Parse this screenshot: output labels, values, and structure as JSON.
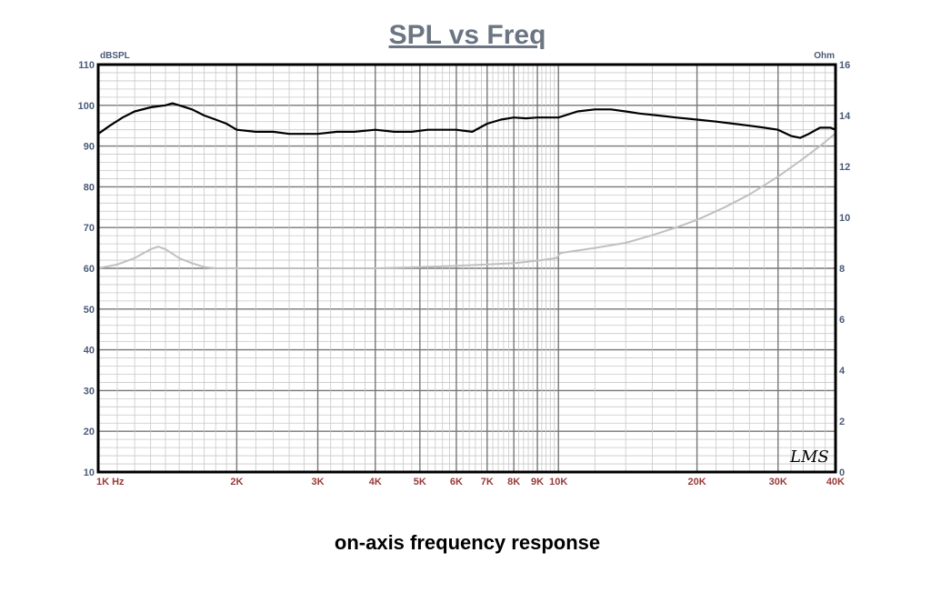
{
  "chart_data": {
    "type": "line",
    "title": "SPL vs Freq",
    "caption": "on-axis frequency response",
    "signature": "LMS",
    "x_scale": "log",
    "xlim": [
      1000,
      40000
    ],
    "x_ticks": [
      {
        "value": 1000,
        "label": "1K  Hz"
      },
      {
        "value": 2000,
        "label": "2K"
      },
      {
        "value": 3000,
        "label": "3K"
      },
      {
        "value": 4000,
        "label": "4K"
      },
      {
        "value": 5000,
        "label": "5K"
      },
      {
        "value": 6000,
        "label": "6K"
      },
      {
        "value": 7000,
        "label": "7K"
      },
      {
        "value": 8000,
        "label": "8K"
      },
      {
        "value": 9000,
        "label": "9K"
      },
      {
        "value": 10000,
        "label": "10K"
      },
      {
        "value": 20000,
        "label": "20K"
      },
      {
        "value": 30000,
        "label": "30K"
      },
      {
        "value": 40000,
        "label": "40K"
      }
    ],
    "y_left": {
      "unit": "dBSPL",
      "lim": [
        10,
        110
      ],
      "ticks": [
        10,
        20,
        30,
        40,
        50,
        60,
        70,
        80,
        90,
        100,
        110
      ]
    },
    "y_right": {
      "unit": "Ohm",
      "lim": [
        0,
        16
      ],
      "ticks": [
        0,
        2,
        4,
        6,
        8,
        10,
        12,
        14,
        16
      ]
    },
    "grid": true,
    "series": [
      {
        "axis": "left",
        "color": "#000000",
        "points": [
          [
            1000,
            93
          ],
          [
            1060,
            95
          ],
          [
            1130,
            97
          ],
          [
            1200,
            98.5
          ],
          [
            1300,
            99.5
          ],
          [
            1400,
            100
          ],
          [
            1450,
            100.5
          ],
          [
            1500,
            100
          ],
          [
            1600,
            99
          ],
          [
            1700,
            97.5
          ],
          [
            1800,
            96.5
          ],
          [
            1900,
            95.5
          ],
          [
            2000,
            94
          ],
          [
            2200,
            93.5
          ],
          [
            2400,
            93.5
          ],
          [
            2600,
            93
          ],
          [
            2800,
            93
          ],
          [
            3000,
            93
          ],
          [
            3300,
            93.5
          ],
          [
            3600,
            93.5
          ],
          [
            4000,
            94
          ],
          [
            4400,
            93.5
          ],
          [
            4800,
            93.5
          ],
          [
            5200,
            94
          ],
          [
            5600,
            94
          ],
          [
            6000,
            94
          ],
          [
            6500,
            93.5
          ],
          [
            7000,
            95.5
          ],
          [
            7500,
            96.5
          ],
          [
            8000,
            97
          ],
          [
            8500,
            96.8
          ],
          [
            9000,
            97
          ],
          [
            10000,
            97
          ],
          [
            11000,
            98.5
          ],
          [
            12000,
            99
          ],
          [
            13000,
            99
          ],
          [
            14000,
            98.5
          ],
          [
            15000,
            98
          ],
          [
            16500,
            97.5
          ],
          [
            18000,
            97
          ],
          [
            20000,
            96.5
          ],
          [
            22000,
            96
          ],
          [
            24000,
            95.5
          ],
          [
            26000,
            95
          ],
          [
            28000,
            94.5
          ],
          [
            30000,
            94
          ],
          [
            32000,
            92.5
          ],
          [
            33500,
            92
          ],
          [
            35000,
            93
          ],
          [
            37000,
            94.5
          ],
          [
            39000,
            94.5
          ],
          [
            40000,
            94
          ]
        ]
      },
      {
        "axis": "right",
        "color": "#c0c0c0",
        "points": [
          [
            1000,
            8.0
          ],
          [
            1100,
            8.15
          ],
          [
            1200,
            8.4
          ],
          [
            1300,
            8.75
          ],
          [
            1350,
            8.85
          ],
          [
            1400,
            8.75
          ],
          [
            1500,
            8.4
          ],
          [
            1600,
            8.2
          ],
          [
            1700,
            8.05
          ],
          [
            1800,
            8.0
          ],
          [
            2000,
            8.0
          ],
          [
            3000,
            8.0
          ],
          [
            4000,
            8.0
          ],
          [
            5000,
            8.05
          ],
          [
            6000,
            8.1
          ],
          [
            7000,
            8.15
          ],
          [
            8000,
            8.2
          ],
          [
            9000,
            8.3
          ],
          [
            9900,
            8.4
          ],
          [
            10100,
            8.6
          ],
          [
            12000,
            8.8
          ],
          [
            14000,
            9.0
          ],
          [
            16000,
            9.3
          ],
          [
            18000,
            9.6
          ],
          [
            20000,
            9.9
          ],
          [
            23000,
            10.4
          ],
          [
            26000,
            10.9
          ],
          [
            30000,
            11.6
          ],
          [
            34000,
            12.3
          ],
          [
            37000,
            12.8
          ],
          [
            40000,
            13.3
          ]
        ]
      }
    ]
  }
}
